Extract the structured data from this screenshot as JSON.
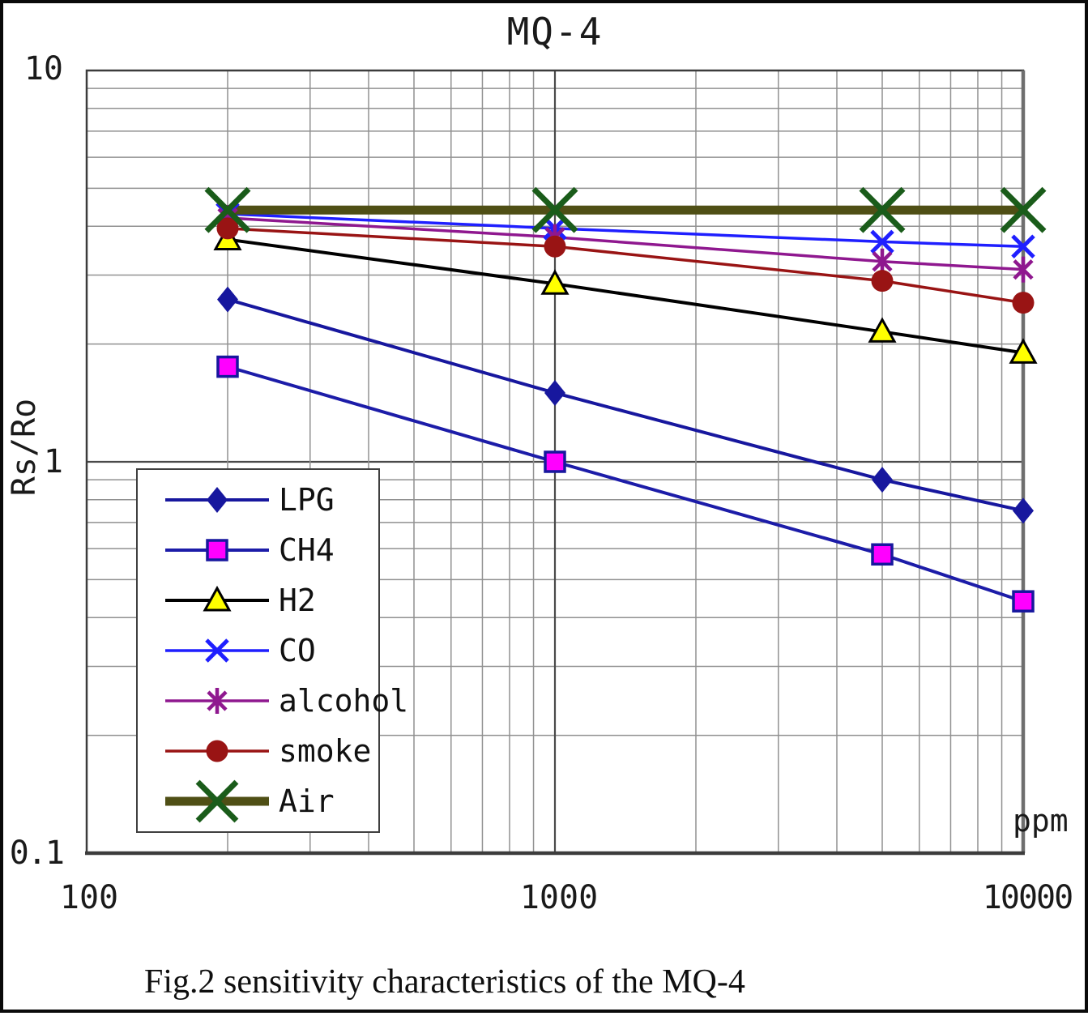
{
  "title": "MQ-4",
  "caption": "Fig.2 sensitivity characteristics of the MQ-4",
  "y_axis": {
    "label": "Rs/Ro",
    "ticks": [
      "10",
      "1",
      "0.1"
    ]
  },
  "x_axis": {
    "unit": "ppm",
    "ticks": [
      "100",
      "1000",
      "10000"
    ]
  },
  "colors": {
    "grid_minor": "#919191",
    "grid_major": "#4a4a4a",
    "plot_border": "#3c3c3c",
    "right_border": "#6e6e6e"
  },
  "chart_data": {
    "type": "line",
    "title": "MQ-4",
    "xlabel": "ppm",
    "ylabel": "Rs/Ro",
    "x_scale": "log",
    "y_scale": "log",
    "xlim": [
      100,
      10000
    ],
    "ylim": [
      0.1,
      10
    ],
    "grid": true,
    "legend_position": "inside-bottom-left",
    "x": [
      200,
      1000,
      5000,
      10000
    ],
    "series": [
      {
        "name": "LPG",
        "values": [
          2.6,
          1.5,
          0.9,
          0.75
        ],
        "color": "#17179e",
        "marker": "diamond",
        "marker_color": "#17179e",
        "marker_stroke": "#17179e",
        "line_width": 4
      },
      {
        "name": "CH4",
        "values": [
          1.75,
          1.0,
          0.58,
          0.44
        ],
        "color": "#1c1ca8",
        "marker": "square",
        "marker_color": "#ff00ff",
        "marker_stroke": "#17179e",
        "line_width": 4
      },
      {
        "name": "H2",
        "values": [
          3.7,
          2.85,
          2.15,
          1.9
        ],
        "color": "#000000",
        "marker": "triangle",
        "marker_color": "#ffff00",
        "marker_stroke": "#000000",
        "line_width": 4
      },
      {
        "name": "CO",
        "values": [
          4.3,
          3.95,
          3.65,
          3.55
        ],
        "color": "#1f1fff",
        "marker": "x",
        "marker_color": "#1f1fff",
        "marker_stroke": "#1f1fff",
        "line_width": 3.5
      },
      {
        "name": "alcohol",
        "values": [
          4.2,
          3.75,
          3.25,
          3.1
        ],
        "color": "#8f188f",
        "marker": "asterisk",
        "marker_color": "#8f188f",
        "marker_stroke": "#8f188f",
        "line_width": 3.5
      },
      {
        "name": "smoke",
        "values": [
          3.95,
          3.55,
          2.9,
          2.55
        ],
        "color": "#991414",
        "marker": "circle",
        "marker_color": "#991414",
        "marker_stroke": "#991414",
        "line_width": 3.5
      },
      {
        "name": "Air",
        "values": [
          4.4,
          4.4,
          4.4,
          4.4
        ],
        "color": "#4f4f15",
        "marker": "X",
        "marker_color": "#1a5c1a",
        "marker_stroke": "#1a5c1a",
        "line_width": 11
      }
    ]
  }
}
